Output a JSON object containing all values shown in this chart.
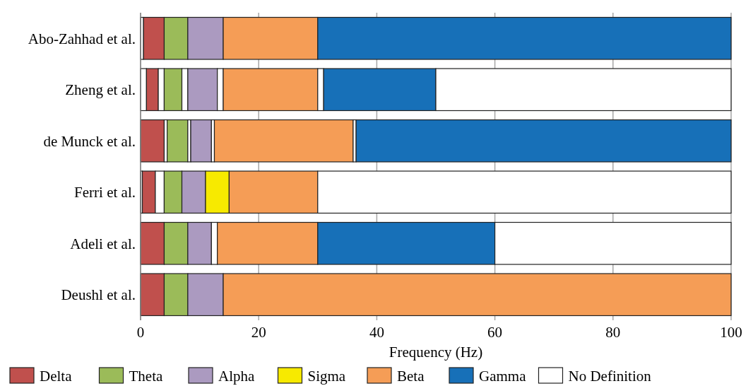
{
  "chart_data": {
    "type": "bar",
    "orientation": "horizontal",
    "stacked": true,
    "xlabel": "Frequency (Hz)",
    "categories": [
      "Abo-Zahhad et al.",
      "Zheng et al.",
      "de Munck et al.",
      "Ferri et al.",
      "Adeli et al.",
      "Deushl et al."
    ],
    "xlim": [
      0,
      100
    ],
    "xticks": [
      0,
      20,
      40,
      60,
      80,
      100
    ],
    "grid": "x",
    "legend": "bottom",
    "series": [
      {
        "color": "#ffffff",
        "values": [
          0.5,
          1,
          null,
          0.3,
          null,
          null
        ]
      },
      {
        "name": "Delta",
        "color": "#c0504d",
        "values": [
          3.5,
          2,
          4,
          2.2,
          4,
          4
        ]
      },
      {
        "color": "#ffffff",
        "values": [
          null,
          1,
          0.5,
          1.5,
          null,
          null
        ]
      },
      {
        "name": "Theta",
        "color": "#9bbb59",
        "values": [
          4,
          3,
          3.5,
          3,
          4,
          4
        ]
      },
      {
        "color": "#ffffff",
        "values": [
          null,
          1,
          0.5,
          null,
          null,
          null
        ]
      },
      {
        "name": "Alpha",
        "color": "#ab9ac0",
        "values": [
          6,
          5,
          3.5,
          4,
          4,
          6
        ]
      },
      {
        "name": "Sigma",
        "color": "#f7ea00",
        "values": [
          null,
          null,
          null,
          4,
          null,
          null
        ]
      },
      {
        "color": "#ffffff",
        "values": [
          null,
          1,
          0.5,
          null,
          1,
          null
        ]
      },
      {
        "name": "Beta",
        "color": "#f59d56",
        "values": [
          16,
          16,
          23.5,
          15,
          17,
          86
        ]
      },
      {
        "color": "#ffffff",
        "values": [
          null,
          1,
          0.5,
          null,
          null,
          null
        ]
      },
      {
        "name": "Gamma",
        "color": "#1770b8",
        "values": [
          70,
          19,
          63.5,
          null,
          30,
          null
        ]
      },
      {
        "name": "No Definition",
        "color": "#ffffff",
        "values": [
          null,
          50,
          null,
          70,
          40,
          null
        ]
      }
    ]
  }
}
